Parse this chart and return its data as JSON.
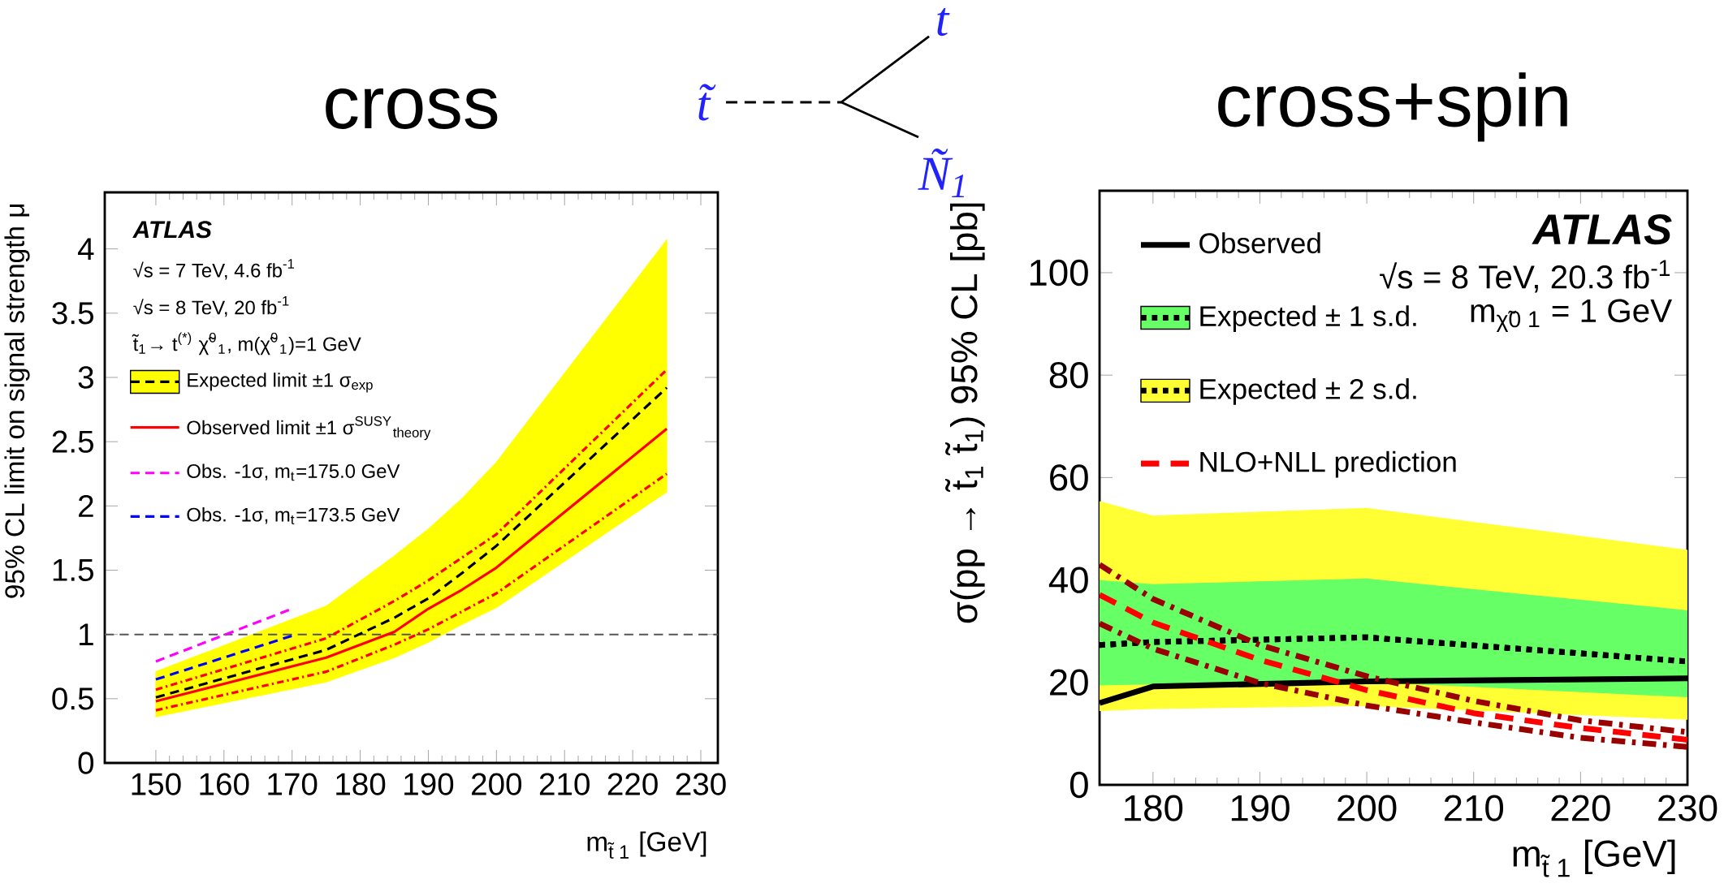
{
  "chart_data": [
    {
      "type": "line",
      "title": "cross",
      "xlabel": "m$_{t̃ 1}$ [GeV]",
      "ylabel": "95% CL limit on signal strength μ",
      "x": [
        150,
        175,
        185,
        190,
        195,
        200,
        225
      ],
      "xlim": [
        142.5,
        232.5
      ],
      "ylim": [
        0,
        4.44
      ],
      "xticks": [
        150,
        160,
        170,
        180,
        190,
        200,
        210,
        220,
        230
      ],
      "yticks": [
        0,
        0.5,
        1,
        1.5,
        2,
        2.5,
        3,
        3.5,
        4
      ],
      "legend": "top left",
      "annotations": [
        "ATLAS",
        "√s = 7 TeV, 4.6 fb$^{-1}$",
        "√s = 8 TeV, 20 fb$^{-1}$",
        "t̃$_{1}$→ t$^{(*)}$ χ̃$^{0}$$_{1}$, m(χ̃$^{0}$$_{1}$)=1 GeV"
      ],
      "ref_lines": [
        {
          "axis": "y",
          "value": 1,
          "color": "#555555",
          "line_style": "dashed"
        }
      ],
      "series": [
        {
          "name": "Expected limit ±1 σ$_{exp}$",
          "type": "line",
          "color": "#000000",
          "line_style": "dashed",
          "colors": [
            "#ffff00",
            "#ffff00",
            "#ffff00",
            "#ffff00",
            "#ffff00",
            "#ffff00",
            "#ffff00"
          ],
          "values": [
            0.51,
            0.88,
            1.13,
            1.28,
            1.48,
            1.69,
            2.92
          ],
          "lower": [
            0.36,
            0.63,
            0.82,
            0.94,
            1.08,
            1.21,
            2.11
          ],
          "upper": [
            0.71,
            1.22,
            1.61,
            1.82,
            2.06,
            2.34,
            4.07
          ]
        },
        {
          "name": "Observed limit ±1 σ$^{SUSY}$$_{theory}$",
          "type": "line",
          "color": "#ff0000",
          "line_style": "solid",
          "values": [
            0.48,
            0.82,
            1.02,
            1.2,
            1.35,
            1.52,
            2.6
          ]
        },
        {
          "type": "line",
          "color": "#ff0000",
          "line_style": "dashdot",
          "values": [
            0.57,
            0.97,
            1.26,
            1.42,
            1.6,
            1.78,
            3.06
          ]
        },
        {
          "type": "line",
          "color": "#ff0000",
          "line_style": "dashdot",
          "values": [
            0.41,
            0.71,
            0.92,
            1.04,
            1.18,
            1.32,
            2.25
          ]
        },
        {
          "name": "Obs. -1σ, m$_{t}$=175.0 GeV",
          "type": "line",
          "color": "#ff00ff",
          "line_style": "dashed",
          "x": [
            150,
            170
          ],
          "values": [
            0.79,
            1.2
          ]
        },
        {
          "name": "Obs. -1σ, m$_{t}$=173.5 GeV",
          "type": "line",
          "color": "#0000ff",
          "line_style": "dashed",
          "x": [
            150,
            170
          ],
          "values": [
            0.65,
            0.99
          ]
        }
      ]
    },
    {
      "type": "other",
      "color": "#2222ff",
      "annotations": [
        "t̃",
        "t",
        "Ñ$_{1}$"
      ]
    },
    {
      "type": "line",
      "title": "cross+spin",
      "xlabel": "m$_{t̃ 1}$ [GeV]",
      "ylabel": "σ(pp → t̃$_{1}$ t̃$_{1}$) 95% CL [pb]",
      "x": [
        175,
        180,
        200,
        230
      ],
      "xlim": [
        175,
        230
      ],
      "ylim": [
        0,
        116
      ],
      "xticks": [
        180,
        190,
        200,
        210,
        220,
        230
      ],
      "yticks": [
        0,
        20,
        40,
        60,
        80,
        100
      ],
      "legend": "top left",
      "annotations": [
        "ATLAS",
        "√s = 8 TeV, 20.3 fb$^{-1}$",
        "m$_{χ̃0 1}$ = 1 GeV"
      ],
      "series": [
        {
          "name": "Observed",
          "type": "line",
          "color": "#000000",
          "line_style": "solid",
          "values": [
            16.0,
            19.2,
            20.2,
            20.8
          ]
        },
        {
          "name": "Expected ± 1 s.d.",
          "type": "line",
          "color": "#000000",
          "line_style": "dotted",
          "colors": [
            "#66ff66",
            "#66ff66",
            "#66ff66",
            "#66ff66"
          ],
          "values": [
            27.3,
            27.9,
            28.8,
            24.1
          ],
          "lower": [
            19.5,
            19.7,
            20.2,
            17.2
          ],
          "upper": [
            39.9,
            39.1,
            40.2,
            34.0
          ]
        },
        {
          "name": "Expected ± 2 s.d.",
          "type": "line",
          "color": "#000000",
          "line_style": "dotted",
          "colors": [
            "#ffff33",
            "#ffff33",
            "#ffff33",
            "#ffff33"
          ],
          "values": [
            27.3,
            27.9,
            28.8,
            24.1
          ],
          "lower": [
            14.5,
            14.9,
            15.5,
            12.8
          ],
          "upper": [
            55.3,
            52.5,
            54.0,
            45.8
          ]
        },
        {
          "type": "line",
          "color": "#990000",
          "line_style": "dashdot",
          "x": [
            175,
            180,
            190,
            200,
            210,
            220,
            230
          ],
          "values": [
            43.0,
            36.3,
            27.3,
            21.2,
            16.4,
            12.6,
            10.3
          ]
        },
        {
          "name": "NLO+NLL prediction",
          "type": "line",
          "color": "#ff0000",
          "line_style": "dashed",
          "x": [
            175,
            180,
            190,
            200,
            210,
            220,
            230
          ],
          "values": [
            37.1,
            31.7,
            24.4,
            18.5,
            14.0,
            11.1,
            8.8
          ]
        },
        {
          "type": "line",
          "color": "#990000",
          "line_style": "dashdot",
          "x": [
            175,
            180,
            190,
            200,
            210,
            220,
            230
          ],
          "values": [
            31.5,
            26.6,
            19.9,
            15.5,
            12.2,
            9.2,
            7.4
          ]
        }
      ]
    }
  ]
}
